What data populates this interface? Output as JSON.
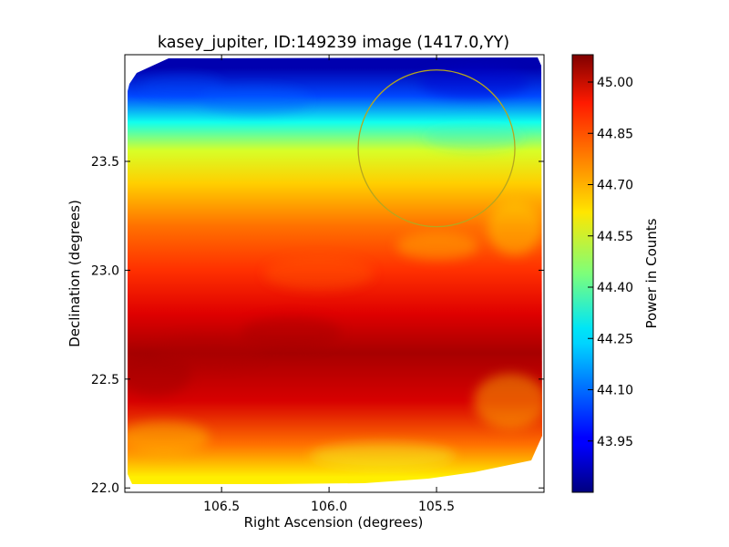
{
  "chart_data": {
    "type": "heatmap",
    "title": "kasey_jupiter, ID:149239 image (1417.0,YY)",
    "xlabel": "Right Ascension (degrees)",
    "ylabel": "Declination (degrees)",
    "colorbar_label": "Power in Counts",
    "xlim": [
      106.95,
      105.0
    ],
    "ylim": [
      21.98,
      23.99
    ],
    "x_ticks": [
      106.5,
      106.0,
      105.5
    ],
    "x_tick_labels": [
      "106.5",
      "106.0",
      "105.5"
    ],
    "y_ticks": [
      22.0,
      22.5,
      23.0,
      23.5
    ],
    "y_tick_labels": [
      "22.0",
      "22.5",
      "23.0",
      "23.5"
    ],
    "color_range": [
      43.8,
      45.08
    ],
    "colorbar_ticks": [
      43.95,
      44.1,
      44.25,
      44.4,
      44.55,
      44.7,
      44.85,
      45.0
    ],
    "colorbar_tick_labels": [
      "43.95",
      "44.10",
      "44.25",
      "44.40",
      "44.55",
      "44.70",
      "44.85",
      "45.00"
    ],
    "colormap": "jet",
    "dec_profile": [
      {
        "dec": 23.93,
        "value": 43.86
      },
      {
        "dec": 23.8,
        "value": 44.05
      },
      {
        "dec": 23.68,
        "value": 44.3
      },
      {
        "dec": 23.55,
        "value": 44.55
      },
      {
        "dec": 23.4,
        "value": 44.66
      },
      {
        "dec": 23.2,
        "value": 44.78
      },
      {
        "dec": 23.0,
        "value": 44.86
      },
      {
        "dec": 22.8,
        "value": 44.96
      },
      {
        "dec": 22.62,
        "value": 45.03
      },
      {
        "dec": 22.4,
        "value": 44.97
      },
      {
        "dec": 22.2,
        "value": 44.78
      },
      {
        "dec": 22.05,
        "value": 44.62
      }
    ],
    "overlay_circle": {
      "ra": 105.5,
      "dec": 23.56,
      "radius_deg": 0.36,
      "color": "#b5a61f"
    },
    "grid": false
  }
}
